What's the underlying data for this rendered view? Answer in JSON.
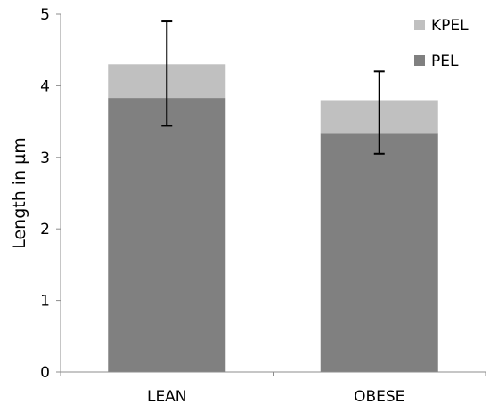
{
  "chart_data": {
    "type": "bar",
    "stacked": true,
    "categories": [
      "LEAN",
      "OBESE"
    ],
    "series": [
      {
        "name": "PEL",
        "values": [
          3.83,
          3.33
        ],
        "color": "#808080"
      },
      {
        "name": "KPEL",
        "values": [
          0.47,
          0.47
        ],
        "color": "#c0c0c0"
      }
    ],
    "error_bars": {
      "center": [
        4.17,
        3.63
      ],
      "upper": [
        4.9,
        4.2
      ],
      "lower": [
        3.44,
        3.05
      ]
    },
    "yticks": [
      "0",
      "1",
      "2",
      "3",
      "4",
      "5"
    ],
    "ylim": [
      0,
      5
    ],
    "title": "",
    "xlabel": "",
    "ylabel": "Length in µm",
    "legend": {
      "position": "top-right",
      "order": [
        "KPEL",
        "PEL"
      ]
    },
    "grid": false
  }
}
